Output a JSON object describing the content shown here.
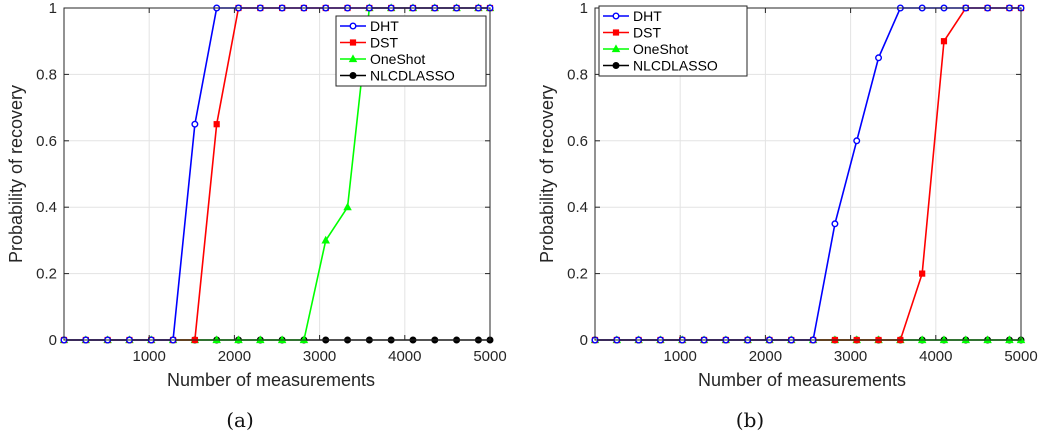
{
  "chart_data": [
    {
      "type": "line",
      "panel_caption": "(a)",
      "xlabel": "Number of measurements",
      "ylabel": "Probability of recovery",
      "xlim": [
        0,
        5000
      ],
      "ylim": [
        0,
        1
      ],
      "xticks": [
        1000,
        2000,
        3000,
        4000,
        5000
      ],
      "yticks": [
        0,
        0.2,
        0.4,
        0.6,
        0.8,
        1
      ],
      "ytick_labels": [
        "0",
        "0.2",
        "0.4",
        "0.6",
        "0.8",
        "1"
      ],
      "grid": true,
      "legend_position": "top-right",
      "x": [
        0,
        256,
        512,
        768,
        1024,
        1280,
        1536,
        1792,
        2048,
        2304,
        2560,
        2816,
        3072,
        3328,
        3584,
        3840,
        4096,
        4352,
        4608,
        4864,
        5000
      ],
      "series": [
        {
          "name": "DHT",
          "color": "#0000ff",
          "marker": "circle",
          "values": [
            0,
            0,
            0,
            0,
            0,
            0,
            0.65,
            1,
            1,
            1,
            1,
            1,
            1,
            1,
            1,
            1,
            1,
            1,
            1,
            1,
            1
          ]
        },
        {
          "name": "DST",
          "color": "#ff0000",
          "marker": "square",
          "values": [
            0,
            0,
            0,
            0,
            0,
            0,
            0,
            0.65,
            1,
            1,
            1,
            1,
            1,
            1,
            1,
            1,
            1,
            1,
            1,
            1,
            1
          ]
        },
        {
          "name": "OneShot",
          "color": "#00ff00",
          "marker": "triangle",
          "values": [
            0,
            0,
            0,
            0,
            0,
            0,
            0,
            0,
            0,
            0,
            0,
            0,
            0.3,
            0.4,
            1,
            1,
            1,
            1,
            1,
            1,
            1
          ]
        },
        {
          "name": "NLCDLASSO",
          "color": "#000000",
          "marker": "circle",
          "values": [
            0,
            0,
            0,
            0,
            0,
            0,
            0,
            0,
            0,
            0,
            0,
            0,
            0,
            0,
            0,
            0,
            0,
            0,
            0,
            0,
            0
          ]
        }
      ]
    },
    {
      "type": "line",
      "panel_caption": "(b)",
      "xlabel": "Number of measurements",
      "ylabel": "Probability of recovery",
      "xlim": [
        0,
        5000
      ],
      "ylim": [
        0,
        1
      ],
      "xticks": [
        1000,
        2000,
        3000,
        4000,
        5000
      ],
      "yticks": [
        0,
        0.2,
        0.4,
        0.6,
        0.8,
        1
      ],
      "ytick_labels": [
        "0",
        "0.2",
        "0.4",
        "0.6",
        "0.8",
        "1"
      ],
      "grid": true,
      "legend_position": "top-left",
      "x": [
        0,
        256,
        512,
        768,
        1024,
        1280,
        1536,
        1792,
        2048,
        2304,
        2560,
        2816,
        3072,
        3328,
        3584,
        3840,
        4096,
        4352,
        4608,
        4864,
        5000
      ],
      "series": [
        {
          "name": "DHT",
          "color": "#0000ff",
          "marker": "circle",
          "values": [
            0,
            0,
            0,
            0,
            0,
            0,
            0,
            0,
            0,
            0,
            0,
            0.35,
            0.6,
            0.85,
            1,
            1,
            1,
            1,
            1,
            1,
            1
          ]
        },
        {
          "name": "DST",
          "color": "#ff0000",
          "marker": "square",
          "values": [
            0,
            0,
            0,
            0,
            0,
            0,
            0,
            0,
            0,
            0,
            0,
            0,
            0,
            0,
            0,
            0.2,
            0.9,
            1,
            1,
            1,
            1
          ]
        },
        {
          "name": "OneShot",
          "color": "#00ff00",
          "marker": "triangle",
          "values": [
            0,
            0,
            0,
            0,
            0,
            0,
            0,
            0,
            0,
            0,
            0,
            0,
            0,
            0,
            0,
            0,
            0,
            0,
            0,
            0,
            0
          ]
        },
        {
          "name": "NLCDLASSO",
          "color": "#000000",
          "marker": "circle",
          "values": [
            0,
            0,
            0,
            0,
            0,
            0,
            0,
            0,
            0,
            0,
            0,
            0,
            0,
            0,
            0,
            0,
            0,
            0,
            0,
            0,
            0
          ]
        }
      ]
    }
  ]
}
